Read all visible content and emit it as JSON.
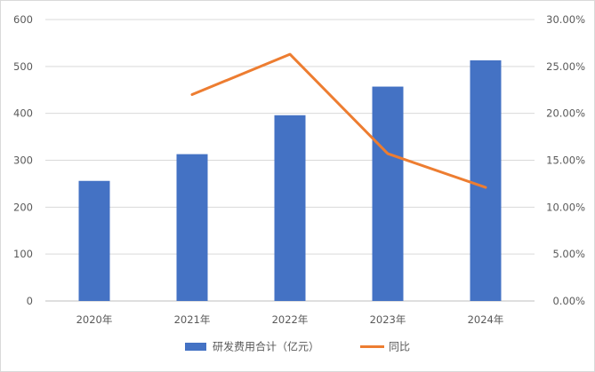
{
  "chart_data": {
    "type": "bar",
    "title": "",
    "xlabel": "",
    "ylabel": "",
    "categories": [
      "2020年",
      "2021年",
      "2022年",
      "2023年",
      "2024年"
    ],
    "ylim": [
      0,
      600
    ],
    "y_ticks": [
      0,
      100,
      200,
      300,
      400,
      500,
      600
    ],
    "y2lim": [
      0,
      0.3
    ],
    "y2_ticks": [
      "0.00%",
      "5.00%",
      "10.00%",
      "15.00%",
      "20.00%",
      "25.00%",
      "30.00%"
    ],
    "grid": true,
    "legend_position": "bottom",
    "series": [
      {
        "name": "研发费用合计（亿元）",
        "type": "bar",
        "axis": "left",
        "color": "#4472C4",
        "values": [
          256,
          313,
          396,
          457,
          513
        ]
      },
      {
        "name": "同比",
        "type": "line",
        "axis": "right",
        "color": "#ED7D31",
        "values": [
          null,
          0.22,
          0.263,
          0.157,
          0.121
        ]
      }
    ]
  }
}
